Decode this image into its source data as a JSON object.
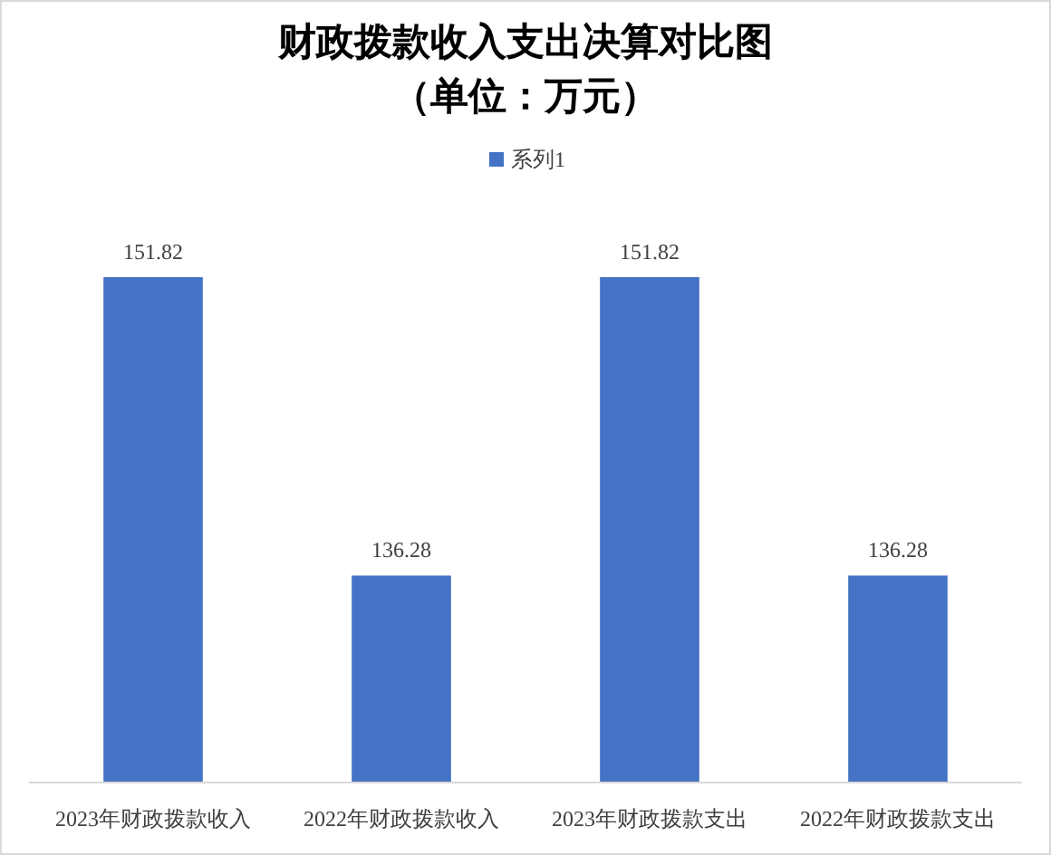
{
  "chart_data": {
    "type": "bar",
    "title": "财政拨款收入支出决算对比图",
    "subtitle": "（单位：万元）",
    "categories": [
      "2023年财政拨款收入",
      "2022年财政拨款收入",
      "2023年财政拨款支出",
      "2022年财政拨款支出"
    ],
    "series": [
      {
        "name": "系列1",
        "color": "#4472c4",
        "values": [
          151.82,
          136.28,
          151.82,
          136.28
        ]
      }
    ],
    "ylim": [
      125.5,
      151.82
    ],
    "tick_labels": "x",
    "data_labels": true,
    "legend": "top",
    "grid": false
  }
}
